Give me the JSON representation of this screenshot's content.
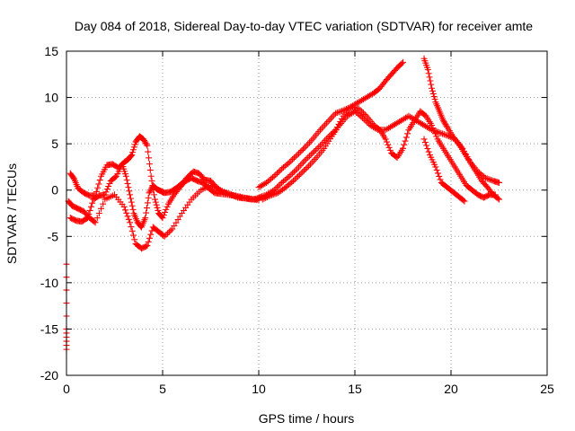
{
  "chart_data": {
    "type": "scatter",
    "title": "Day 084 of 2018, Sidereal Day-to-day VTEC variation (SDTVAR) for receiver amte",
    "xlabel": "GPS time / hours",
    "ylabel": "SDTVAR / TECUs",
    "xlim": [
      0,
      25
    ],
    "ylim": [
      -20,
      15
    ],
    "xticks": [
      0,
      5,
      10,
      15,
      20,
      25
    ],
    "yticks": [
      -20,
      -15,
      -10,
      -5,
      0,
      5,
      10,
      15
    ],
    "grid": true,
    "marker": "+",
    "color": "#ff0000",
    "series": [
      {
        "name": "trace-1",
        "x": [
          0.2,
          0.4,
          0.6,
          0.9,
          1.2,
          1.5,
          1.8,
          2.1,
          2.4,
          2.7,
          3.0,
          3.2,
          3.4,
          3.6,
          3.8,
          4.0,
          4.2,
          4.4,
          4.6,
          4.8,
          5.0,
          5.3,
          5.6,
          5.9,
          6.2,
          6.5,
          6.8,
          7.1,
          7.4,
          7.7,
          8.0,
          8.4,
          8.8,
          9.2,
          9.6,
          10.0
        ],
        "y": [
          1.8,
          1.2,
          0.2,
          -0.3,
          -0.6,
          -0.6,
          1.5,
          2.7,
          2.8,
          2.4,
          3.0,
          3.3,
          3.8,
          5.2,
          5.8,
          5.5,
          4.8,
          1.5,
          -1.0,
          -2.5,
          -3.0,
          -1.5,
          -0.5,
          0.3,
          1.0,
          1.3,
          1.0,
          0.8,
          0.2,
          -0.3,
          -0.4,
          -0.5,
          -0.6,
          -0.8,
          -1.0,
          -1.0
        ]
      },
      {
        "name": "trace-2",
        "x": [
          0.2,
          0.5,
          0.8,
          1.1,
          1.4,
          1.7,
          2.0,
          2.3,
          2.6,
          2.9,
          3.1,
          3.3,
          3.5,
          3.7,
          3.9,
          4.1,
          4.3,
          4.5,
          4.7,
          4.9,
          5.1,
          5.4,
          5.7,
          6.0,
          6.3,
          6.6,
          6.9,
          7.2,
          7.5,
          7.8,
          8.1,
          8.5,
          8.9,
          9.3,
          9.7,
          10.1
        ],
        "y": [
          -3.0,
          -3.3,
          -3.4,
          -3.0,
          -1.0,
          -0.6,
          -0.5,
          1.0,
          1.5,
          2.8,
          1.5,
          -0.5,
          -2.5,
          -3.5,
          -4.0,
          -3.0,
          -0.3,
          0.5,
          0.1,
          -0.1,
          -0.3,
          -0.2,
          0.2,
          0.7,
          1.4,
          2.0,
          1.8,
          1.1,
          1.0,
          0.3,
          -0.2,
          -0.4,
          -0.8,
          -0.9,
          -1.0,
          -0.8
        ]
      },
      {
        "name": "trace-3",
        "x": [
          0.1,
          0.3,
          0.6,
          0.9,
          1.2,
          1.5,
          2.0,
          2.5,
          3.0,
          3.3,
          3.6,
          3.9,
          4.2,
          4.5,
          4.8,
          5.1,
          5.5,
          6.0,
          6.5,
          7.0,
          7.5,
          8.0,
          8.5,
          9.0,
          9.5,
          10.0
        ],
        "y": [
          -1.2,
          -1.7,
          -2.0,
          -2.3,
          -3.0,
          -3.5,
          -1.0,
          -0.5,
          -1.8,
          -3.5,
          -5.8,
          -6.3,
          -6.0,
          -4.0,
          -4.5,
          -5.0,
          -4.2,
          -2.5,
          -1.0,
          0.0,
          0.5,
          0.0,
          -0.5,
          -0.8,
          -0.9,
          -1.1
        ]
      },
      {
        "name": "trace-4",
        "x": [
          10.0,
          10.4,
          10.8,
          11.2,
          11.6,
          12.0,
          12.4,
          12.8,
          13.2,
          13.6,
          14.0,
          14.4,
          14.8,
          15.2,
          15.6,
          16.0,
          16.3,
          16.6,
          16.9,
          17.2,
          17.5
        ],
        "y": [
          0.3,
          0.8,
          1.5,
          2.3,
          3.0,
          3.8,
          4.6,
          5.5,
          6.5,
          7.4,
          8.3,
          8.6,
          9.0,
          9.5,
          10.0,
          10.5,
          11.0,
          11.8,
          12.5,
          13.2,
          13.8
        ]
      },
      {
        "name": "trace-5",
        "x": [
          10.0,
          10.4,
          10.8,
          11.2,
          11.6,
          12.0,
          12.4,
          12.8,
          13.2,
          13.6,
          14.0,
          14.4,
          14.8,
          15.2,
          15.6,
          16.0,
          16.3,
          16.6,
          16.9,
          17.2,
          17.5,
          17.8,
          18.1,
          18.4,
          18.7,
          19.0,
          19.3,
          19.6,
          19.9,
          20.2,
          20.5,
          20.8,
          21.1,
          21.4,
          21.7,
          22.0,
          22.3
        ],
        "y": [
          -0.8,
          -0.5,
          0.0,
          0.8,
          1.5,
          2.3,
          3.2,
          4.0,
          4.8,
          5.7,
          6.5,
          8.0,
          9.0,
          8.8,
          8.0,
          7.0,
          6.5,
          5.5,
          4.0,
          3.5,
          4.5,
          6.5,
          7.5,
          8.5,
          8.0,
          7.0,
          5.5,
          4.5,
          3.5,
          2.5,
          1.5,
          0.5,
          0.0,
          -0.5,
          -0.8,
          -0.5,
          -0.5
        ]
      },
      {
        "name": "trace-6",
        "x": [
          10.2,
          10.6,
          11.0,
          11.4,
          11.8,
          12.2,
          12.6,
          13.0,
          13.4,
          13.8,
          14.2,
          14.6,
          15.0,
          15.4,
          15.8,
          16.2,
          16.6,
          17.0,
          17.4,
          17.8,
          18.2,
          18.6,
          19.0,
          19.4,
          19.8,
          20.2,
          20.6,
          21.0,
          21.4,
          21.8,
          22.2,
          22.5
        ],
        "y": [
          -1.0,
          -0.6,
          -0.3,
          0.3,
          1.0,
          1.8,
          2.6,
          3.5,
          4.5,
          5.8,
          7.0,
          8.0,
          8.5,
          7.8,
          7.0,
          6.5,
          6.5,
          7.0,
          7.5,
          8.0,
          7.5,
          7.0,
          6.5,
          6.2,
          5.9,
          5.5,
          4.5,
          3.0,
          2.0,
          1.3,
          1.0,
          0.8
        ]
      },
      {
        "name": "trace-7",
        "x": [
          18.6,
          18.8,
          19.0,
          19.2,
          19.4,
          19.6,
          19.8,
          20.1,
          20.4,
          20.7,
          21.0,
          21.3,
          21.6,
          21.9,
          22.2,
          22.5
        ],
        "y": [
          14.2,
          13.0,
          11.0,
          9.5,
          8.5,
          7.5,
          6.8,
          5.8,
          5.0,
          4.0,
          3.0,
          2.0,
          1.0,
          0.3,
          -0.5,
          -1.0
        ]
      },
      {
        "name": "trace-8",
        "x": [
          18.6,
          18.9,
          19.2,
          19.5,
          19.8,
          20.1,
          20.4,
          20.7
        ],
        "y": [
          5.5,
          3.8,
          2.5,
          0.8,
          0.3,
          -0.2,
          -0.7,
          -1.2
        ]
      },
      {
        "name": "trace-9",
        "x": [
          0.0,
          0.0,
          0.0
        ],
        "y": [
          -8.0,
          -15.0,
          -17.2
        ]
      }
    ]
  }
}
